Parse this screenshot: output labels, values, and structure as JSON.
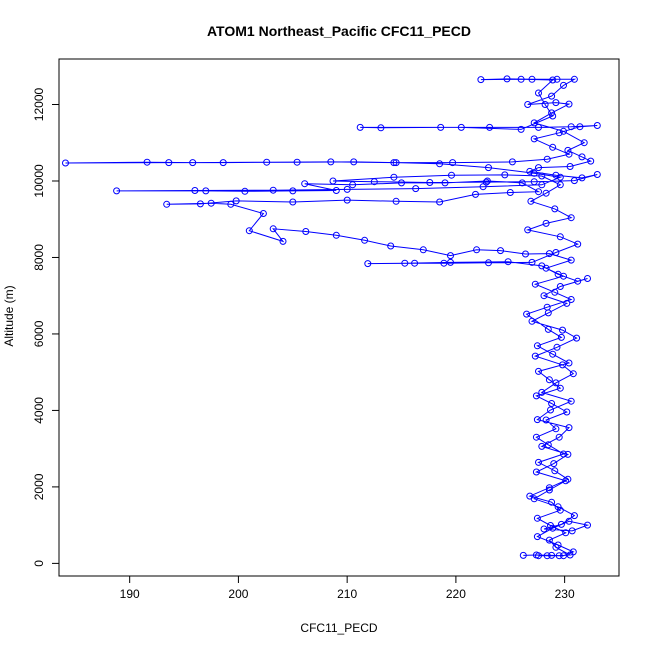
{
  "chart_data": {
    "type": "line",
    "title": "ATOM1 Northeast_Pacific CFC11_PECD",
    "xlabel": "CFC11_PECD",
    "ylabel": "Altitude (m)",
    "xlim": [
      183.5,
      235.0
    ],
    "ylim": [
      -330,
      13190
    ],
    "x_ticks": [
      190,
      200,
      210,
      220,
      230
    ],
    "y_ticks": [
      0,
      2000,
      4000,
      6000,
      8000,
      10000,
      12000
    ],
    "grid": false,
    "legend": "none",
    "markers": "open-circle",
    "series": [
      {
        "color": "#0000ff",
        "points": [
          [
            227.6,
            200
          ],
          [
            228.4,
            200
          ],
          [
            229.5,
            200
          ],
          [
            230.5,
            220
          ],
          [
            229.2,
            420
          ],
          [
            228.6,
            610
          ],
          [
            230.1,
            800
          ],
          [
            228.7,
            990
          ],
          [
            227.5,
            1180
          ],
          [
            229.6,
            1390
          ],
          [
            228.8,
            1600
          ],
          [
            226.8,
            1760
          ],
          [
            228.6,
            1980
          ],
          [
            230.3,
            2200
          ],
          [
            229.1,
            2420
          ],
          [
            227.6,
            2640
          ],
          [
            229.9,
            2860
          ],
          [
            228.5,
            3100
          ],
          [
            227.4,
            3300
          ],
          [
            229.2,
            3520
          ],
          [
            228.3,
            3750
          ],
          [
            230.2,
            3960
          ],
          [
            228.8,
            4180
          ],
          [
            227.4,
            4380
          ],
          [
            229.6,
            4580
          ],
          [
            228.6,
            4800
          ],
          [
            227.6,
            5020
          ],
          [
            230.4,
            5240
          ],
          [
            228.9,
            5470
          ],
          [
            227.5,
            5690
          ],
          [
            229.7,
            5910
          ],
          [
            228.5,
            6120
          ],
          [
            226.5,
            6520
          ],
          [
            228.4,
            6700
          ],
          [
            230.6,
            6900
          ],
          [
            229.1,
            7090
          ],
          [
            227.3,
            7300
          ],
          [
            229.9,
            7510
          ],
          [
            228.3,
            7720
          ],
          [
            230.6,
            7930
          ],
          [
            228.6,
            8100
          ],
          [
            226.4,
            8090
          ],
          [
            224.1,
            8180
          ],
          [
            221.9,
            8200
          ],
          [
            219.5,
            8050
          ],
          [
            217.0,
            8200
          ],
          [
            214.0,
            8300
          ],
          [
            211.6,
            8450
          ],
          [
            209.0,
            8580
          ],
          [
            206.2,
            8680
          ],
          [
            203.2,
            8750
          ],
          [
            204.1,
            8420
          ],
          [
            201.0,
            8700
          ],
          [
            202.3,
            9150
          ],
          [
            199.3,
            9390
          ],
          [
            197.5,
            9420
          ],
          [
            193.4,
            9390
          ],
          [
            196.5,
            9400
          ],
          [
            199.8,
            9480
          ],
          [
            205.0,
            9450
          ],
          [
            210.0,
            9500
          ],
          [
            214.5,
            9470
          ],
          [
            218.5,
            9450
          ],
          [
            221.8,
            9650
          ],
          [
            225.0,
            9700
          ],
          [
            227.6,
            9720
          ],
          [
            226.1,
            9950
          ],
          [
            222.9,
            10000
          ],
          [
            219.0,
            9950
          ],
          [
            215.0,
            9950
          ],
          [
            210.5,
            9900
          ],
          [
            206.1,
            9930
          ],
          [
            209.0,
            9750
          ],
          [
            205.0,
            9740
          ],
          [
            200.6,
            9730
          ],
          [
            197.0,
            9740
          ],
          [
            188.8,
            9740
          ],
          [
            196.0,
            9750
          ],
          [
            203.2,
            9760
          ],
          [
            210.0,
            9780
          ],
          [
            216.3,
            9800
          ],
          [
            222.5,
            9850
          ],
          [
            227.9,
            9900
          ],
          [
            229.6,
            10100
          ],
          [
            227.2,
            10200
          ],
          [
            223.0,
            10350
          ],
          [
            218.5,
            10450
          ],
          [
            214.5,
            10480
          ],
          [
            210.6,
            10500
          ],
          [
            205.4,
            10490
          ],
          [
            198.6,
            10480
          ],
          [
            193.6,
            10480
          ],
          [
            184.1,
            10470
          ],
          [
            191.6,
            10490
          ],
          [
            195.8,
            10480
          ],
          [
            202.6,
            10490
          ],
          [
            208.5,
            10500
          ],
          [
            214.3,
            10480
          ],
          [
            219.7,
            10480
          ],
          [
            225.2,
            10500
          ],
          [
            228.4,
            10570
          ],
          [
            230.4,
            10700
          ],
          [
            228.9,
            10880
          ],
          [
            227.2,
            11100
          ],
          [
            229.5,
            11260
          ],
          [
            231.4,
            11420
          ],
          [
            233.0,
            11450
          ],
          [
            230.6,
            11420
          ],
          [
            227.6,
            11400
          ],
          [
            223.1,
            11400
          ],
          [
            218.6,
            11400
          ],
          [
            213.1,
            11390
          ],
          [
            211.2,
            11400
          ],
          [
            220.5,
            11400
          ],
          [
            226.0,
            11350
          ],
          [
            228.9,
            11700
          ],
          [
            228.2,
            12000
          ],
          [
            227.6,
            12300
          ],
          [
            228.9,
            12640
          ],
          [
            226.0,
            12660
          ],
          [
            222.3,
            12650
          ],
          [
            224.7,
            12670
          ],
          [
            227.0,
            12660
          ],
          [
            229.3,
            12660
          ],
          [
            230.9,
            12660
          ],
          [
            229.9,
            12500
          ],
          [
            228.8,
            12220
          ],
          [
            226.6,
            12000
          ],
          [
            229.2,
            12050
          ],
          [
            230.4,
            12010
          ],
          [
            228.8,
            11780
          ],
          [
            227.2,
            11520
          ],
          [
            229.9,
            11300
          ],
          [
            231.8,
            11000
          ],
          [
            230.3,
            10800
          ],
          [
            231.6,
            10630
          ],
          [
            232.4,
            10520
          ],
          [
            230.5,
            10380
          ],
          [
            227.6,
            10350
          ],
          [
            226.8,
            10250
          ],
          [
            229.2,
            10150
          ],
          [
            231.6,
            10080
          ],
          [
            233.0,
            10170
          ],
          [
            230.9,
            10010
          ],
          [
            227.2,
            9980
          ],
          [
            222.8,
            9970
          ],
          [
            217.6,
            9960
          ],
          [
            212.5,
            9980
          ],
          [
            208.7,
            10000
          ],
          [
            214.3,
            10100
          ],
          [
            219.6,
            10150
          ],
          [
            224.5,
            10160
          ],
          [
            227.9,
            10130
          ],
          [
            229.6,
            9900
          ],
          [
            228.3,
            9680
          ],
          [
            226.9,
            9470
          ],
          [
            229.1,
            9270
          ],
          [
            230.6,
            9040
          ],
          [
            228.3,
            8890
          ],
          [
            226.6,
            8720
          ],
          [
            229.6,
            8540
          ],
          [
            231.2,
            8350
          ],
          [
            229.2,
            8130
          ],
          [
            227.0,
            7870
          ],
          [
            223.0,
            7860
          ],
          [
            218.9,
            7850
          ],
          [
            216.2,
            7850
          ],
          [
            211.9,
            7840
          ],
          [
            215.3,
            7850
          ],
          [
            219.5,
            7870
          ],
          [
            224.8,
            7890
          ],
          [
            227.9,
            7780
          ],
          [
            229.4,
            7560
          ],
          [
            231.2,
            7380
          ],
          [
            232.1,
            7450
          ],
          [
            229.6,
            7240
          ],
          [
            228.1,
            7000
          ],
          [
            230.2,
            6800
          ],
          [
            228.5,
            6550
          ],
          [
            227.0,
            6330
          ],
          [
            229.8,
            6100
          ],
          [
            231.1,
            5890
          ],
          [
            229.3,
            5650
          ],
          [
            227.3,
            5420
          ],
          [
            229.8,
            5190
          ],
          [
            230.8,
            4960
          ],
          [
            229.2,
            4720
          ],
          [
            227.9,
            4470
          ],
          [
            230.6,
            4240
          ],
          [
            228.7,
            4010
          ],
          [
            227.5,
            3760
          ],
          [
            230.4,
            3550
          ],
          [
            229.5,
            3300
          ],
          [
            227.9,
            3060
          ],
          [
            230.3,
            2850
          ],
          [
            229.0,
            2610
          ],
          [
            227.4,
            2390
          ],
          [
            230.1,
            2160
          ],
          [
            228.6,
            1920
          ],
          [
            227.2,
            1690
          ],
          [
            229.4,
            1480
          ],
          [
            230.9,
            1250
          ],
          [
            229.7,
            1020
          ],
          [
            228.1,
            900
          ],
          [
            230.7,
            850
          ],
          [
            232.1,
            1000
          ],
          [
            230.4,
            1100
          ],
          [
            228.9,
            920
          ],
          [
            227.5,
            700
          ],
          [
            229.4,
            480
          ],
          [
            230.8,
            300
          ],
          [
            229.9,
            200
          ],
          [
            228.8,
            210
          ],
          [
            227.4,
            220
          ],
          [
            226.2,
            210
          ]
        ]
      }
    ]
  }
}
